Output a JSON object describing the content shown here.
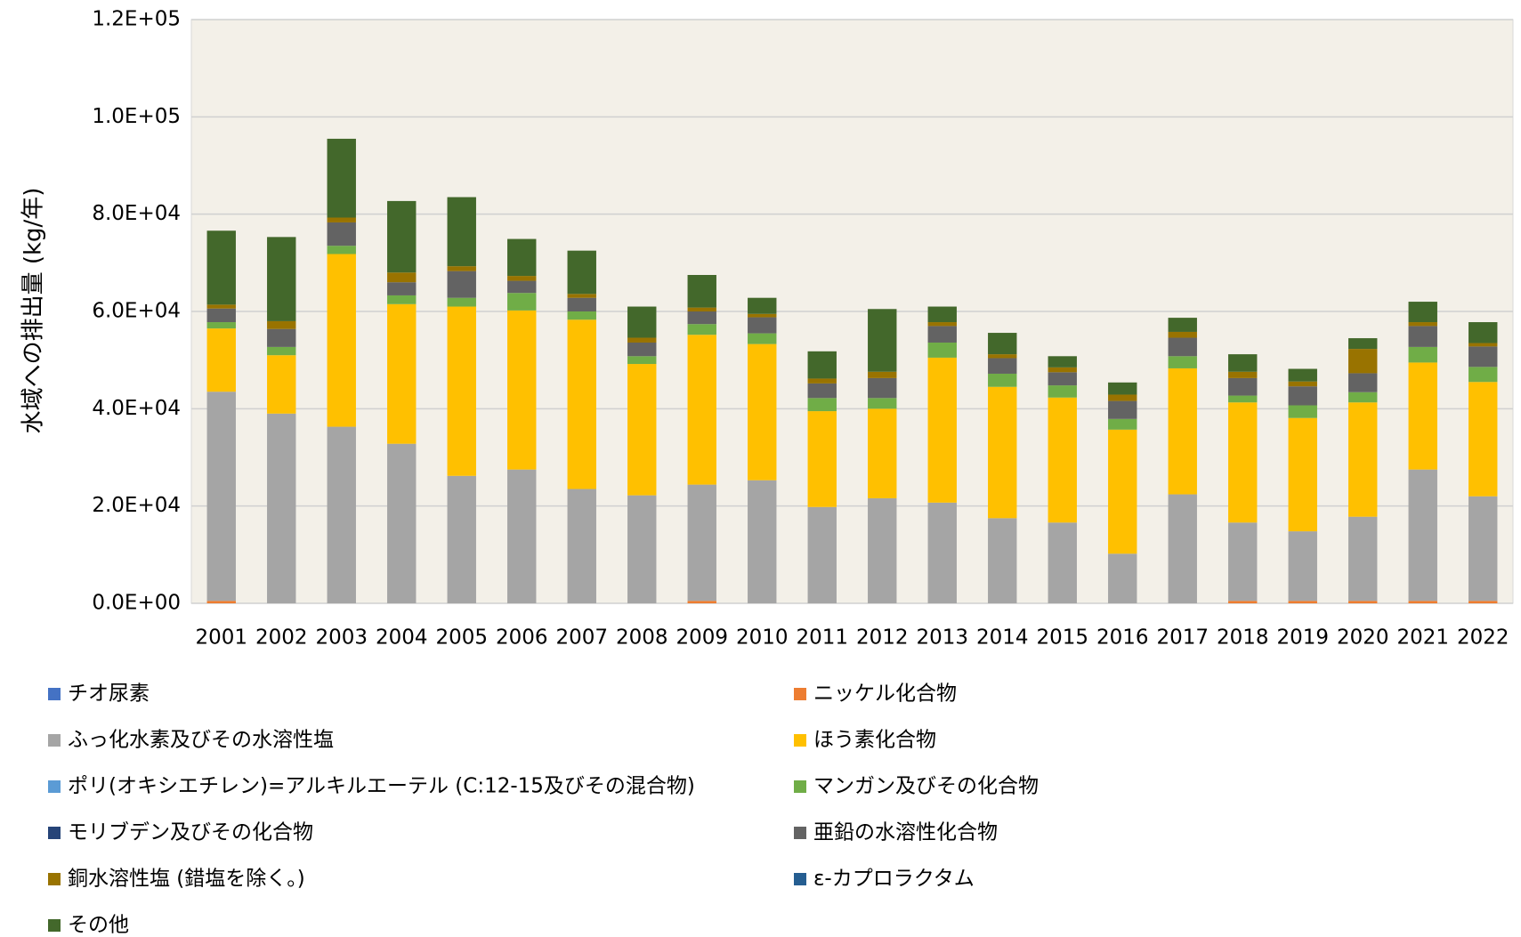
{
  "chart_data": {
    "type": "stacked_bar",
    "y_label": "水域への排出量 (kg/年)",
    "categories": [
      "2001",
      "2002",
      "2003",
      "2004",
      "2005",
      "2006",
      "2007",
      "2008",
      "2009",
      "2010",
      "2011",
      "2012",
      "2013",
      "2014",
      "2015",
      "2016",
      "2017",
      "2018",
      "2019",
      "2020",
      "2021",
      "2022"
    ],
    "ylim": [
      0,
      120000
    ],
    "yticks": [
      {
        "value": 0,
        "label": "0.0E+00"
      },
      {
        "value": 20000,
        "label": "2.0E+04"
      },
      {
        "value": 40000,
        "label": "4.0E+04"
      },
      {
        "value": 60000,
        "label": "6.0E+04"
      },
      {
        "value": 80000,
        "label": "8.0E+04"
      },
      {
        "value": 100000,
        "label": "1.0E+05"
      },
      {
        "value": 120000,
        "label": "1.2E+05"
      }
    ],
    "grid": true,
    "series": [
      {
        "name": "チオ尿素",
        "color": "#4472c4",
        "values": [
          0,
          0,
          0,
          0,
          0,
          0,
          0,
          0,
          0,
          0,
          0,
          0,
          0,
          0,
          0,
          0,
          0,
          0,
          0,
          0,
          0,
          0
        ]
      },
      {
        "name": "ニッケル化合物",
        "color": "#ed7d31",
        "values": [
          500,
          0,
          0,
          0,
          0,
          0,
          0,
          0,
          500,
          0,
          0,
          0,
          0,
          0,
          0,
          0,
          0,
          500,
          500,
          500,
          500,
          500
        ]
      },
      {
        "name": "ふっ化水素及びその水溶性塩",
        "color": "#a5a5a5",
        "values": [
          43000,
          39000,
          36300,
          32800,
          26200,
          27500,
          23500,
          22200,
          23900,
          25300,
          19800,
          21600,
          20700,
          17500,
          16600,
          10200,
          22400,
          16100,
          14300,
          17300,
          27000,
          21500
        ]
      },
      {
        "name": "ほう素化合物",
        "color": "#ffc000",
        "values": [
          13000,
          12000,
          35500,
          28700,
          34800,
          32700,
          34800,
          27000,
          30800,
          28000,
          19700,
          18400,
          29800,
          27000,
          25700,
          25500,
          25900,
          24700,
          23300,
          23500,
          22000,
          23500
        ]
      },
      {
        "name": "ポリ(オキシエチレン)=アルキルエーテル (C:12-15及びその混合物)",
        "color": "#5b9bd5",
        "values": [
          0,
          0,
          0,
          0,
          0,
          0,
          0,
          0,
          0,
          0,
          0,
          0,
          0,
          0,
          0,
          0,
          0,
          0,
          0,
          0,
          0,
          0
        ]
      },
      {
        "name": "マンガン及びその化合物",
        "color": "#70ad47",
        "values": [
          1300,
          1700,
          1700,
          1800,
          1800,
          3600,
          1700,
          1600,
          2200,
          2200,
          2700,
          2200,
          3100,
          2700,
          2500,
          2200,
          2500,
          1400,
          2600,
          2100,
          3200,
          3100
        ]
      },
      {
        "name": "モリブデン及びその化合物",
        "color": "#264478",
        "values": [
          0,
          0,
          0,
          0,
          0,
          0,
          0,
          0,
          0,
          0,
          0,
          0,
          0,
          0,
          0,
          0,
          0,
          0,
          0,
          0,
          0,
          0
        ]
      },
      {
        "name": "亜鉛の水溶性化合物",
        "color": "#636363",
        "values": [
          2800,
          3700,
          4800,
          2700,
          5500,
          2500,
          2800,
          2800,
          2600,
          3300,
          3000,
          4100,
          3400,
          3200,
          2700,
          3700,
          3800,
          3600,
          3900,
          3900,
          4300,
          4200
        ]
      },
      {
        "name": "銅水溶性塩 (錯塩を除く。)",
        "color": "#997300",
        "values": [
          800,
          1600,
          1000,
          2000,
          1000,
          1000,
          800,
          1000,
          800,
          700,
          1000,
          1300,
          800,
          800,
          1000,
          1300,
          1200,
          1300,
          1000,
          5000,
          800,
          700
        ]
      },
      {
        "name": "ε-カプロラクタム",
        "color": "#255e91",
        "values": [
          0,
          0,
          0,
          0,
          0,
          0,
          0,
          0,
          0,
          0,
          0,
          0,
          0,
          0,
          0,
          0,
          0,
          0,
          0,
          0,
          0,
          0
        ]
      },
      {
        "name": "その他",
        "color": "#43682b",
        "values": [
          15200,
          17300,
          16200,
          14700,
          14200,
          7600,
          8900,
          6400,
          6700,
          3300,
          5600,
          12900,
          3200,
          4400,
          2300,
          2500,
          2900,
          3600,
          2600,
          2200,
          4200,
          4300
        ]
      }
    ]
  }
}
